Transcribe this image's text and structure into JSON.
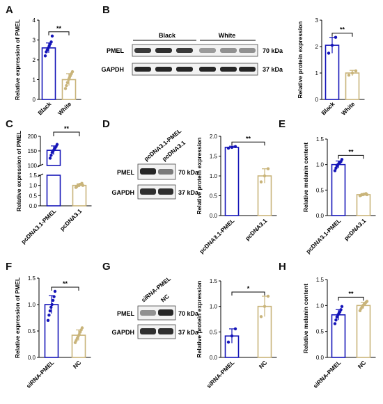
{
  "panel_letters": [
    "A",
    "B",
    "C",
    "D",
    "E",
    "F",
    "G",
    "H"
  ],
  "colors": {
    "blue": "#1515b8",
    "tan": "#c9b47a",
    "band": "#1a1a1a"
  },
  "chart_data": [
    {
      "id": "A",
      "type": "bar",
      "ylabel": "Relative expression of PMEL",
      "categories": [
        "Black",
        "White"
      ],
      "values": [
        2.6,
        1.0
      ],
      "errors": [
        0.25,
        0.3
      ],
      "ylim": [
        0,
        4
      ],
      "yticks": [
        "0",
        "1",
        "2",
        "3",
        "4"
      ],
      "sig": "**",
      "points": [
        [
          2.2,
          2.4,
          2.5,
          2.6,
          2.7,
          2.8,
          2.9,
          3.2
        ],
        [
          0.55,
          0.7,
          0.85,
          1.0,
          1.1,
          1.2,
          1.3,
          1.4
        ]
      ]
    },
    {
      "id": "B",
      "type": "bar",
      "ylabel": "Relative protein expression",
      "categories": [
        "Black",
        "White"
      ],
      "values": [
        2.05,
        1.0
      ],
      "errors": [
        0.3,
        0.1
      ],
      "ylim": [
        0,
        3
      ],
      "yticks": [
        "0",
        "1",
        "2",
        "3"
      ],
      "sig": "**",
      "points": [
        [
          1.75,
          2.05,
          2.35
        ],
        [
          0.92,
          1.0,
          1.08
        ]
      ]
    },
    {
      "id": "C",
      "type": "bar",
      "ylabel": "Relative expression of PMEL",
      "categories": [
        "pcDNA3.1-PMEL",
        "pcDNA3.1"
      ],
      "values": [
        152,
        1.0
      ],
      "errors": [
        15,
        0.08
      ],
      "yticks": [
        "0.0",
        "0.5",
        "1.0",
        "1.5",
        "100",
        "150",
        "200"
      ],
      "axis_break": true,
      "sig": "**",
      "points": [
        [
          125,
          135,
          145,
          150,
          155,
          160,
          165,
          172
        ],
        [
          0.9,
          0.95,
          1.0,
          1.0,
          1.05,
          1.05,
          1.1,
          1.0
        ]
      ]
    },
    {
      "id": "D",
      "type": "bar",
      "ylabel": "Relative protein expression",
      "categories": [
        "pcDNA3.1-PMEL",
        "pcDNA3.1"
      ],
      "values": [
        1.72,
        1.0
      ],
      "errors": [
        0.03,
        0.18
      ],
      "ylim": [
        0,
        2.0
      ],
      "yticks": [
        "0.0",
        "0.5",
        "1.0",
        "1.5",
        "2.0"
      ],
      "sig": "**",
      "points": [
        [
          1.7,
          1.72,
          1.74
        ],
        [
          0.85,
          1.0,
          1.18
        ]
      ]
    },
    {
      "id": "E",
      "type": "bar",
      "ylabel": "Relative melanin content",
      "categories": [
        "pcDNA3.1-PMEL",
        "pcDNA3.1"
      ],
      "values": [
        1.0,
        0.41
      ],
      "errors": [
        0.07,
        0.02
      ],
      "ylim": [
        0,
        1.5
      ],
      "yticks": [
        "0.0",
        "0.5",
        "1.0",
        "1.5"
      ],
      "sig": "**",
      "points": [
        [
          0.88,
          0.93,
          0.97,
          1.0,
          1.02,
          1.04,
          1.06,
          1.1
        ],
        [
          0.39,
          0.4,
          0.41,
          0.41,
          0.42,
          0.42,
          0.43,
          0.41
        ]
      ]
    },
    {
      "id": "F",
      "type": "bar",
      "ylabel": "Relative expression of PMEL",
      "categories": [
        "siRNA-PMEL",
        "NC"
      ],
      "values": [
        1.0,
        0.42
      ],
      "errors": [
        0.17,
        0.1
      ],
      "ylim": [
        0,
        1.5
      ],
      "yticks": [
        "0.0",
        "0.5",
        "1.0",
        "1.5"
      ],
      "sig": "**",
      "points": [
        [
          0.7,
          0.8,
          0.88,
          0.95,
          1.0,
          1.08,
          1.15,
          1.25
        ],
        [
          0.28,
          0.32,
          0.36,
          0.4,
          0.43,
          0.48,
          0.52,
          0.56
        ]
      ]
    },
    {
      "id": "G",
      "type": "bar",
      "ylabel": "Relative protein expression",
      "categories": [
        "siRNA-PMEL",
        "NC"
      ],
      "values": [
        0.42,
        1.0
      ],
      "errors": [
        0.14,
        0.2
      ],
      "ylim": [
        0,
        1.5
      ],
      "yticks": [
        "0.0",
        "0.5",
        "1.0",
        "1.5"
      ],
      "sig": "*",
      "points": [
        [
          0.3,
          0.42,
          0.56
        ],
        [
          0.8,
          1.0,
          1.2
        ]
      ]
    },
    {
      "id": "H",
      "type": "bar",
      "ylabel": "Relative melanin content",
      "categories": [
        "siRNA-PMEL",
        "NC"
      ],
      "values": [
        0.82,
        1.0
      ],
      "errors": [
        0.1,
        0.06
      ],
      "ylim": [
        0,
        1.5
      ],
      "yticks": [
        "0.0",
        "0.5",
        "1.0",
        "1.5"
      ],
      "sig": "**",
      "points": [
        [
          0.65,
          0.72,
          0.78,
          0.82,
          0.85,
          0.88,
          0.92,
          0.98
        ],
        [
          0.9,
          0.94,
          0.97,
          1.0,
          1.02,
          1.04,
          1.06,
          1.08
        ]
      ]
    }
  ],
  "blots": {
    "B": {
      "group_labels": [
        "Black",
        "White"
      ],
      "rows": [
        "PMEL",
        "GAPDH"
      ],
      "sizes": [
        "70 kDa",
        "37 kDa"
      ]
    },
    "D": {
      "lane_labels": [
        "pcDNA3.1-PMEL",
        "pcDNA3.1"
      ],
      "rows": [
        "PMEL",
        "GAPDH"
      ],
      "sizes": [
        "70 kDa",
        "37 kDa"
      ]
    },
    "G": {
      "lane_labels": [
        "siRNA-PMEL",
        "NC"
      ],
      "rows": [
        "PMEL",
        "GAPDH"
      ],
      "sizes": [
        "70 kDa",
        "37 kDa"
      ]
    }
  }
}
